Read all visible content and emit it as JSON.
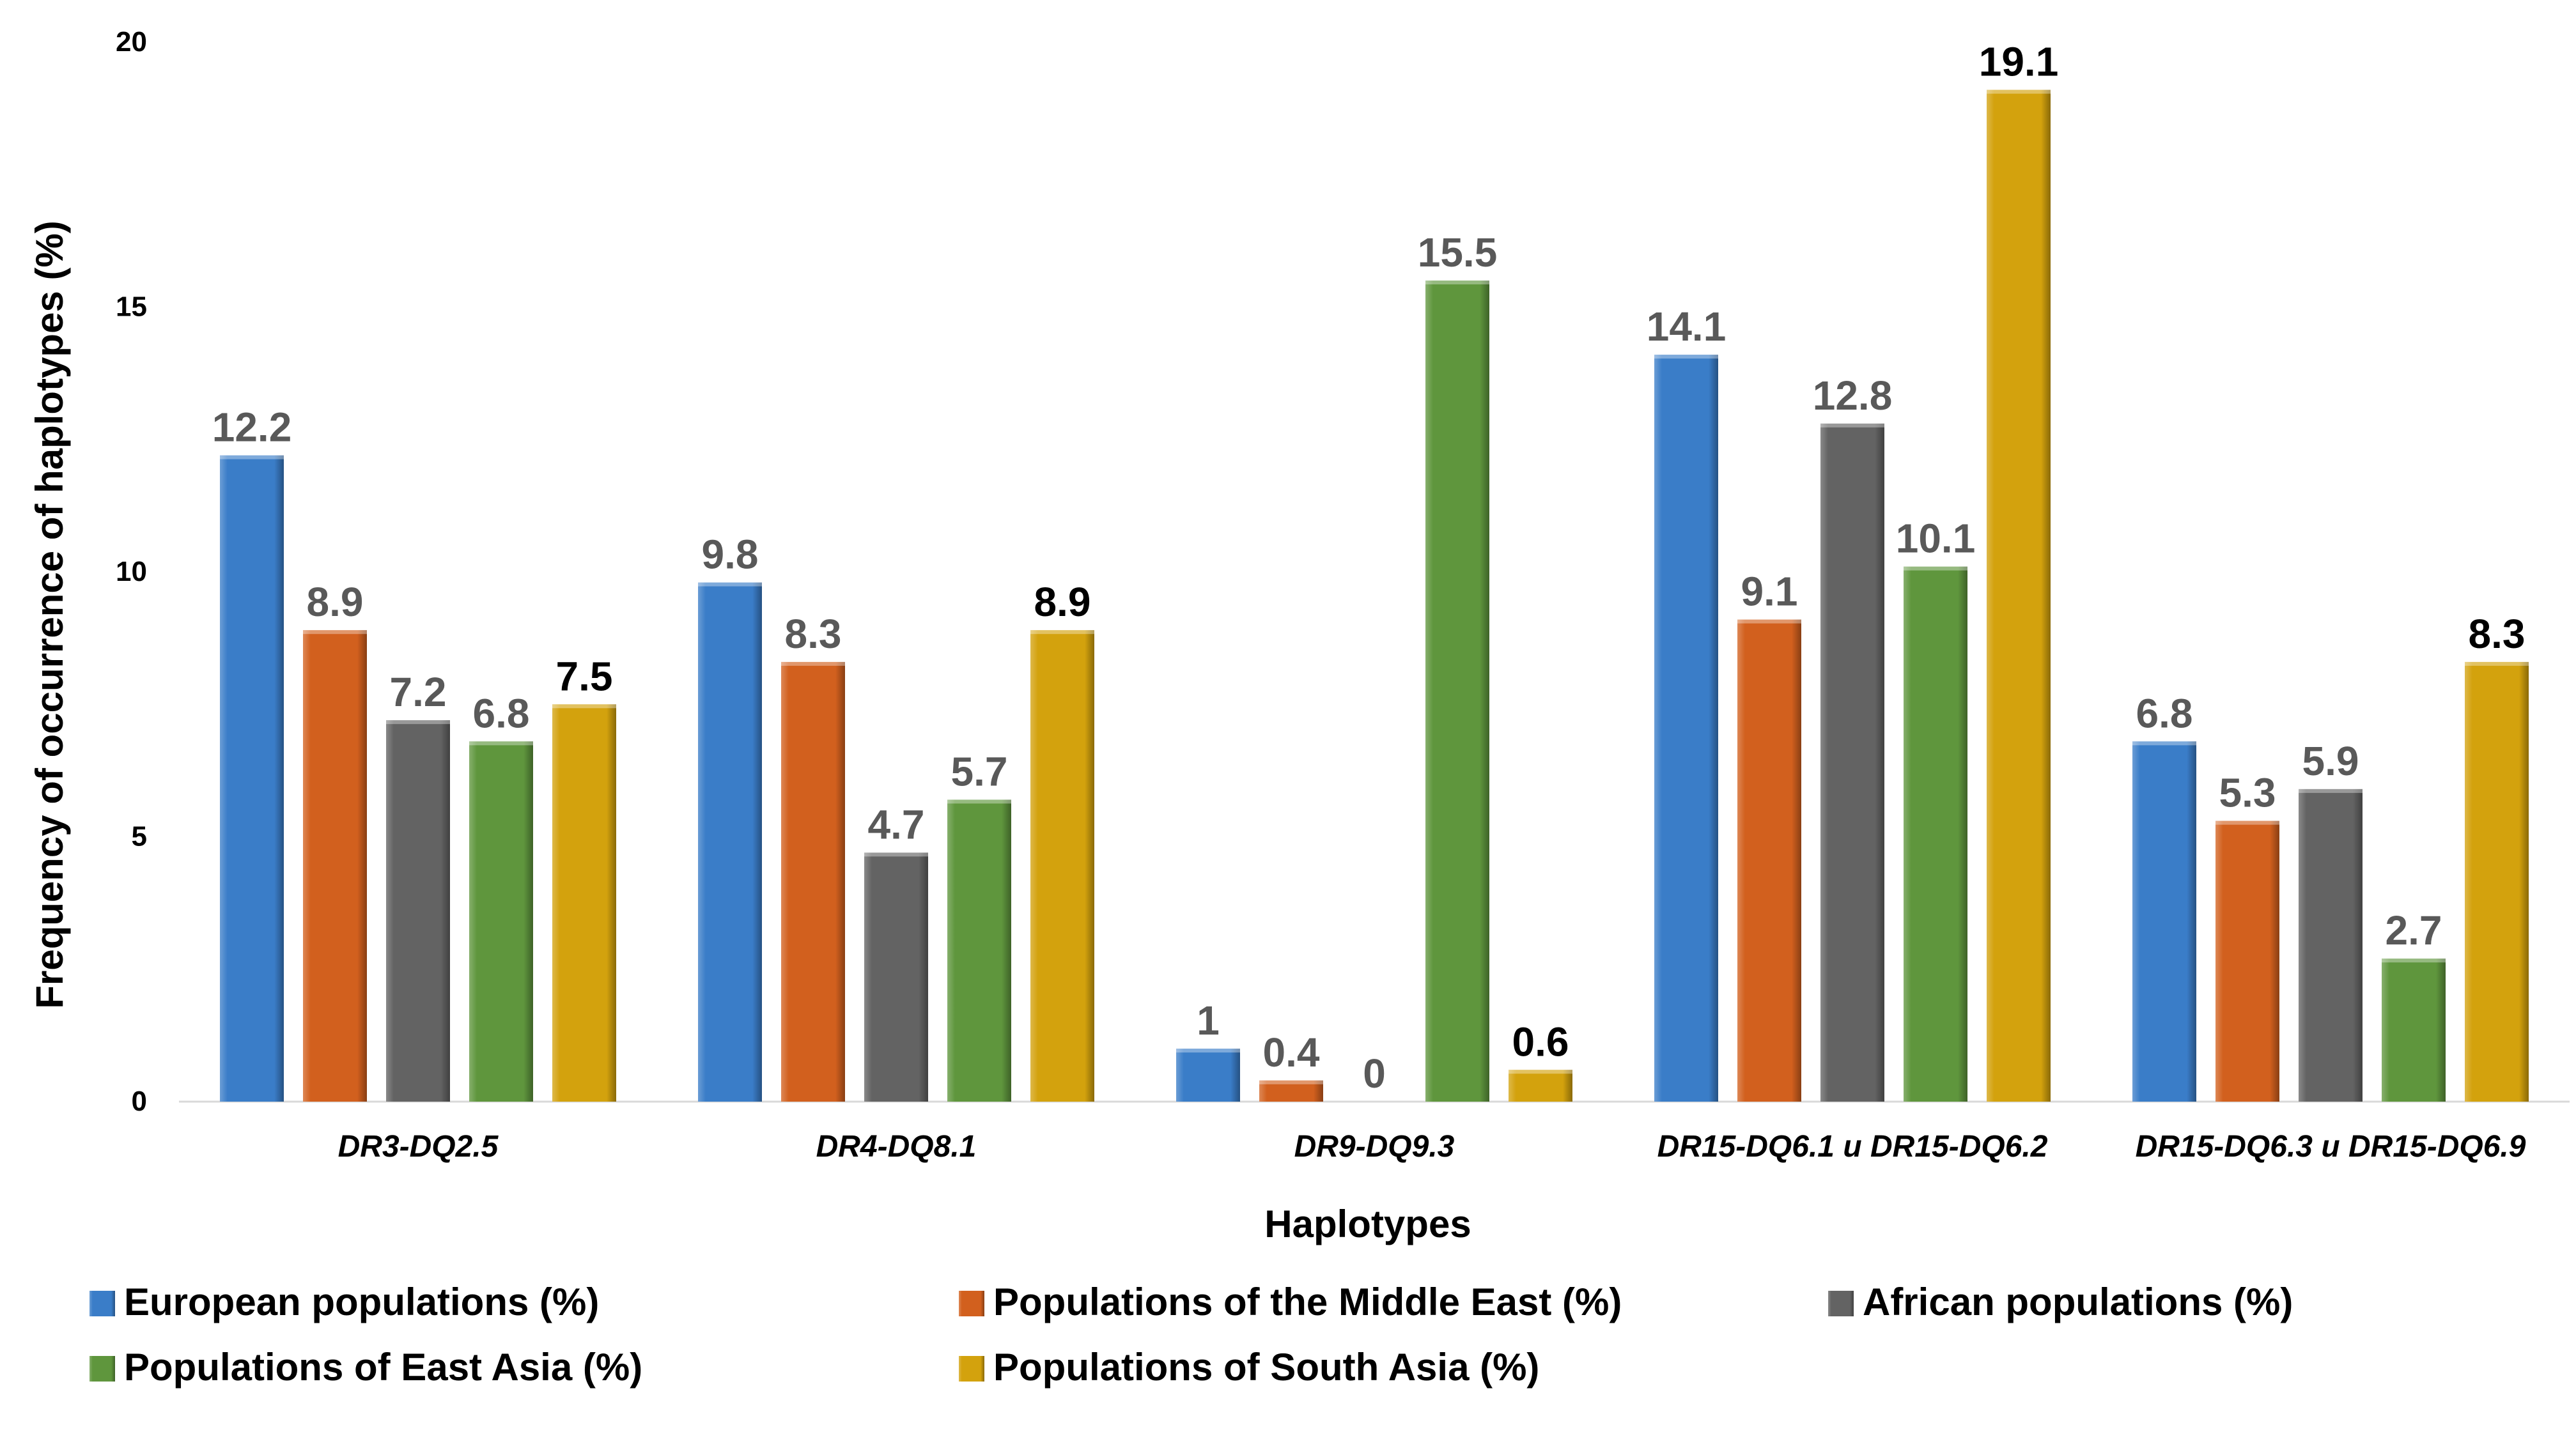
{
  "chart_data": {
    "type": "bar",
    "title": "",
    "xlabel": "Haplotypes",
    "ylabel": "Frequency of occurrence of haplotypes (%)",
    "ylim": [
      0,
      20
    ],
    "yticks": [
      "0",
      "5",
      "10",
      "15",
      "20"
    ],
    "grid": false,
    "legend_position": "bottom",
    "categories": [
      "DR3-DQ2.5",
      "DR4-DQ8.1",
      "DR9-DQ9.3",
      "DR15-DQ6.1 u DR15-DQ6.2",
      "DR15-DQ6.3 u DR15-DQ6.9"
    ],
    "series": [
      {
        "name": "European populations (%)",
        "color": "#3a7dc8",
        "values": [
          12.2,
          9.8,
          1,
          14.1,
          6.8
        ],
        "labels": [
          "12.2",
          "9.8",
          "1",
          "14.1",
          "6.8"
        ]
      },
      {
        "name": "Populations of the Middle East (%)",
        "color": "#d2601e",
        "values": [
          8.9,
          8.3,
          0.4,
          9.1,
          5.3
        ],
        "labels": [
          "8.9",
          "8.3",
          "0.4",
          "9.1",
          "5.3"
        ]
      },
      {
        "name": "African populations (%)",
        "color": "#636363",
        "values": [
          7.2,
          4.7,
          0,
          12.8,
          5.9
        ],
        "labels": [
          "7.2",
          "4.7",
          "0",
          "12.8",
          "5.9"
        ]
      },
      {
        "name": "Populations of East Asia (%)",
        "color": "#5f963d",
        "values": [
          6.8,
          5.7,
          15.5,
          10.1,
          2.7
        ],
        "labels": [
          "6.8",
          "5.7",
          "15.5",
          "10.1",
          "2.7"
        ]
      },
      {
        "name": "Populations of South Asia (%)",
        "color": "#d3a20d",
        "values": [
          7.5,
          8.9,
          0.6,
          19.1,
          8.3
        ],
        "labels": [
          "7.5",
          "8.9",
          "0.6",
          "19.1",
          "8.3"
        ]
      }
    ]
  }
}
